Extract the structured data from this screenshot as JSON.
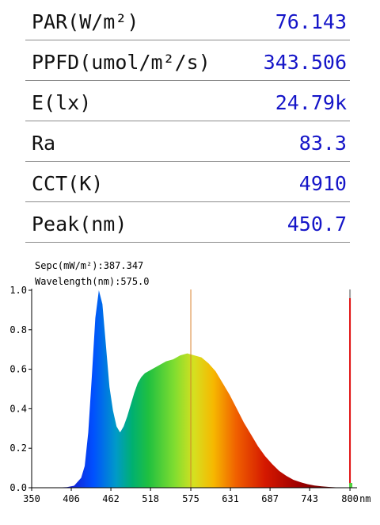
{
  "metrics": [
    {
      "label": "PAR(W/m²)",
      "value": "76.143"
    },
    {
      "label": "PPFD(umol/m²/s)",
      "value": "343.506"
    },
    {
      "label": "E(lx)",
      "value": "24.79k"
    },
    {
      "label": "Ra",
      "value": "83.3"
    },
    {
      "label": "CCT(K)",
      "value": "4910"
    },
    {
      "label": "Peak(nm)",
      "value": "450.7"
    }
  ],
  "readout": {
    "spec": "Sepc(mW/m²):387.347",
    "wavelength": "Wavelength(nm):575.0"
  },
  "chart_data": {
    "type": "area",
    "xlabel": "",
    "x_unit": "nm",
    "ylabel": "",
    "xlim": [
      350,
      810
    ],
    "ylim": [
      0,
      1.0
    ],
    "x_ticks": [
      350,
      406,
      462,
      518,
      575,
      631,
      687,
      743,
      800
    ],
    "x_tick_labels": [
      "350",
      "406",
      "462",
      "518",
      "575",
      "631",
      "687",
      "743",
      "800"
    ],
    "y_ticks": [
      0.0,
      0.2,
      0.4,
      0.6,
      0.8,
      1.0
    ],
    "y_tick_labels": [
      "0.0",
      "0.2",
      "0.4",
      "0.6",
      "0.8",
      "1.0"
    ],
    "cursor_nm": 575.0,
    "cursor_color": "#d9822b",
    "end_marker_nm": 800,
    "end_marker_color": "#e01010",
    "series": [
      {
        "x": [
          350,
          380,
          400,
          410,
          420,
          425,
          430,
          435,
          440,
          445,
          450,
          455,
          460,
          465,
          470,
          475,
          480,
          485,
          490,
          495,
          500,
          505,
          510,
          515,
          520,
          530,
          540,
          550,
          560,
          570,
          575,
          580,
          590,
          600,
          610,
          620,
          630,
          640,
          650,
          660,
          670,
          680,
          690,
          700,
          710,
          720,
          730,
          740,
          750,
          760,
          770,
          780,
          790,
          800
        ],
        "y": [
          0.0,
          0.0,
          0.003,
          0.01,
          0.05,
          0.11,
          0.28,
          0.56,
          0.86,
          1.0,
          0.93,
          0.72,
          0.51,
          0.39,
          0.31,
          0.28,
          0.31,
          0.36,
          0.42,
          0.48,
          0.53,
          0.56,
          0.58,
          0.59,
          0.6,
          0.62,
          0.64,
          0.65,
          0.67,
          0.68,
          0.675,
          0.67,
          0.66,
          0.63,
          0.59,
          0.53,
          0.47,
          0.4,
          0.33,
          0.27,
          0.21,
          0.16,
          0.12,
          0.085,
          0.06,
          0.04,
          0.028,
          0.018,
          0.011,
          0.007,
          0.004,
          0.002,
          0.001,
          0.0
        ]
      }
    ]
  }
}
